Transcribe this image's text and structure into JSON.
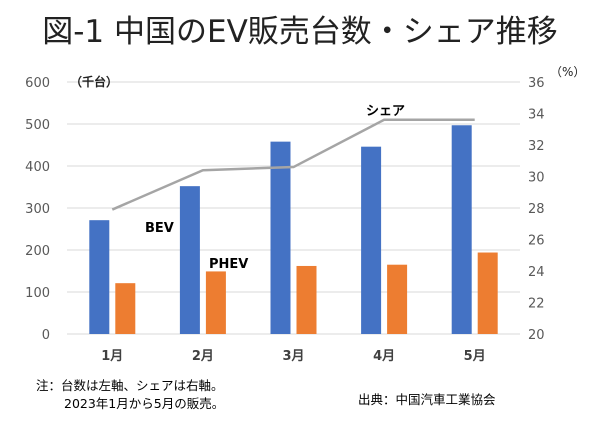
{
  "chart_data": {
    "type": "bar",
    "title": "図-1 中国のEV販売台数・シェア推移",
    "categories": [
      "1月",
      "2月",
      "3月",
      "4月",
      "5月"
    ],
    "series": [
      {
        "name": "BEV",
        "type": "bar",
        "axis": "left",
        "color": "#4472C4",
        "values": [
          271,
          352,
          458,
          446,
          497
        ]
      },
      {
        "name": "PHEV",
        "type": "bar",
        "axis": "left",
        "color": "#ED7D31",
        "values": [
          121,
          149,
          162,
          165,
          194
        ]
      },
      {
        "name": "シェア",
        "type": "line",
        "axis": "right",
        "color": "#A5A5A5",
        "values": [
          27.9,
          30.4,
          30.6,
          33.6,
          33.6
        ]
      }
    ],
    "ylabel": "（千台）",
    "ylim": [
      0,
      600
    ],
    "yticks": [
      0,
      100,
      200,
      300,
      400,
      500,
      600
    ],
    "y2label": "（%）",
    "y2lim": [
      20,
      36
    ],
    "y2ticks": [
      20,
      22,
      24,
      26,
      28,
      30,
      32,
      34,
      36
    ],
    "grid": true
  },
  "notes": {
    "line1": "注：台数は左軸、シェアは右軸。",
    "line2": "2023年1月から5月の販売。",
    "source": "出典：中国汽車工業協会"
  }
}
